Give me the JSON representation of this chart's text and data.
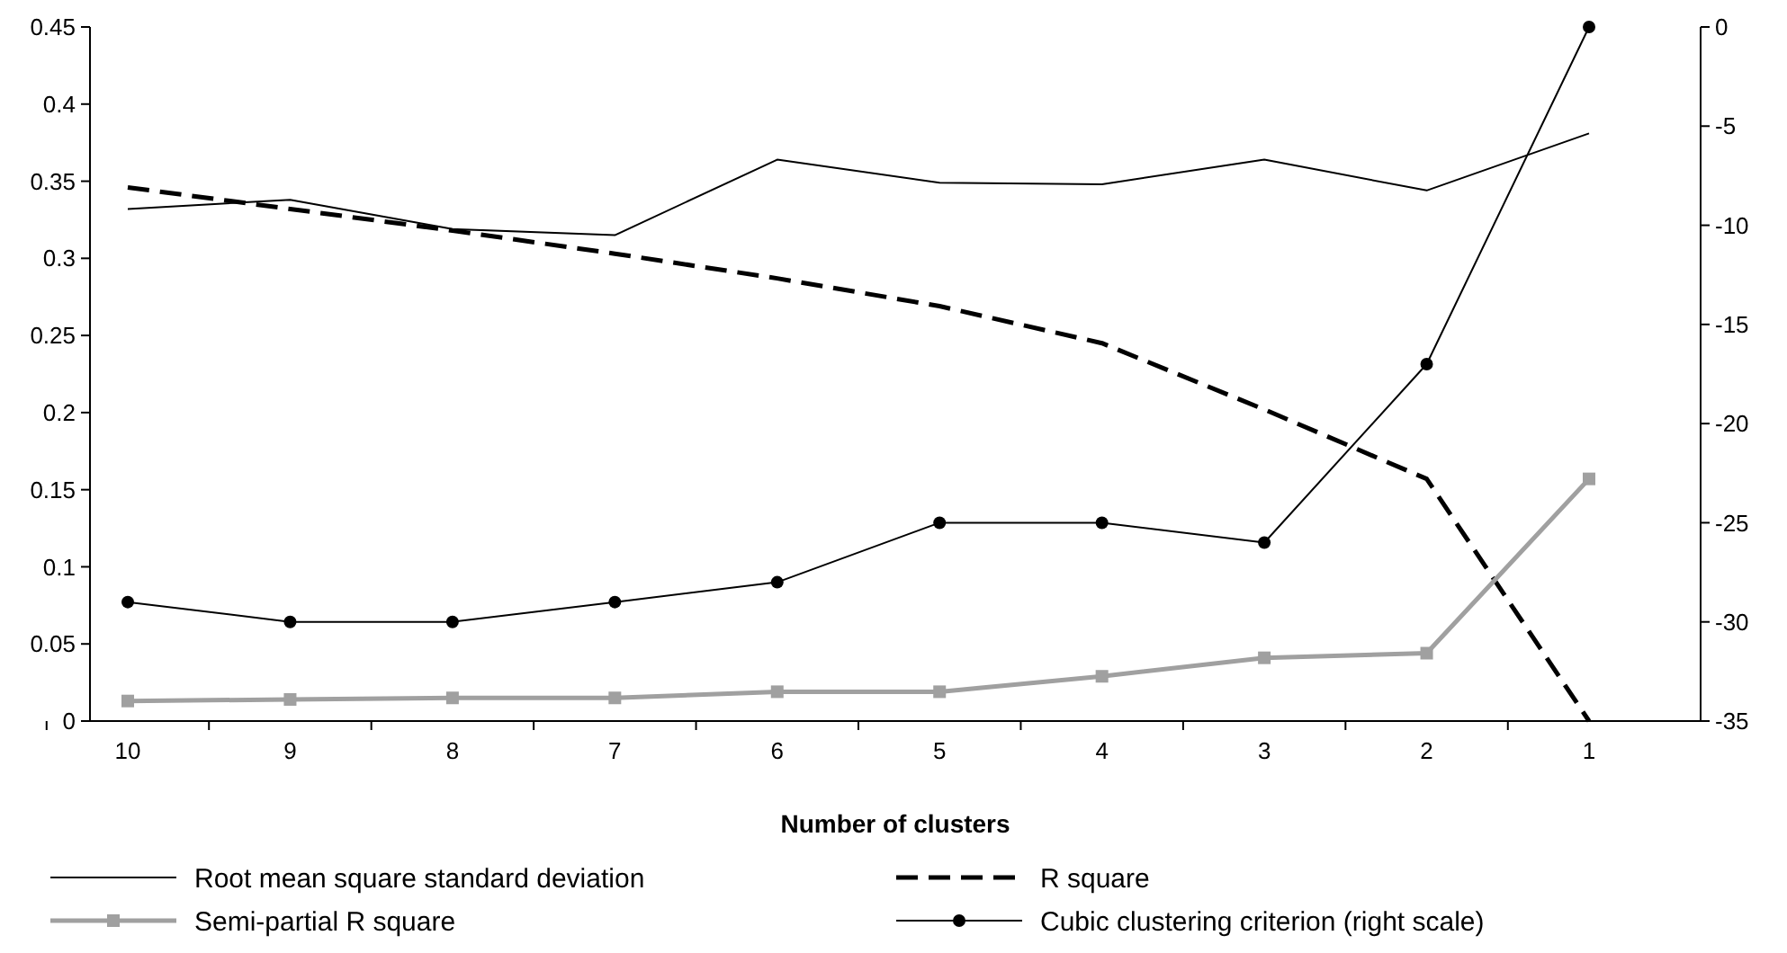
{
  "chart_data": {
    "type": "line",
    "xlabel": "Number of clusters",
    "categories": [
      "10",
      "9",
      "8",
      "7",
      "6",
      "5",
      "4",
      "3",
      "2",
      "1"
    ],
    "ylim": [
      0,
      0.45
    ],
    "yticks": [
      0,
      0.05,
      0.1,
      0.15,
      0.2,
      0.25,
      0.3,
      0.35,
      0.4,
      0.45
    ],
    "y2lim": [
      -35,
      0
    ],
    "y2ticks": [
      -35,
      -30,
      -25,
      -20,
      -15,
      -10,
      -5,
      0
    ],
    "legend": "bottom",
    "grid": false,
    "series": [
      {
        "name": "Root mean square standard deviation",
        "color": "#000000",
        "marker": "none",
        "line_style": "solid",
        "values": [
          0.332,
          0.338,
          0.319,
          0.315,
          0.364,
          0.349,
          0.348,
          0.364,
          0.344,
          0.381
        ]
      },
      {
        "name": "R square",
        "color": "#000000",
        "marker": "none",
        "line_style": "dashed",
        "values": [
          0.346,
          0.332,
          0.318,
          0.303,
          0.287,
          0.269,
          0.245,
          0.202,
          0.157,
          0
        ]
      },
      {
        "name": "Semi-partial R square",
        "color": "#a0a0a0",
        "marker": "square",
        "line_style": "solid",
        "values": [
          0.013,
          0.014,
          0.015,
          0.015,
          0.019,
          0.019,
          0.029,
          0.041,
          0.044,
          0.157
        ]
      },
      {
        "name": "Cubic clustering criterion (right scale)",
        "color": "#000000",
        "marker": "circle",
        "line_style": "solid",
        "axis": "y2",
        "values": [
          -29,
          -30,
          -30,
          -29,
          -28,
          -25,
          -25,
          -26,
          -17,
          0
        ]
      }
    ]
  }
}
